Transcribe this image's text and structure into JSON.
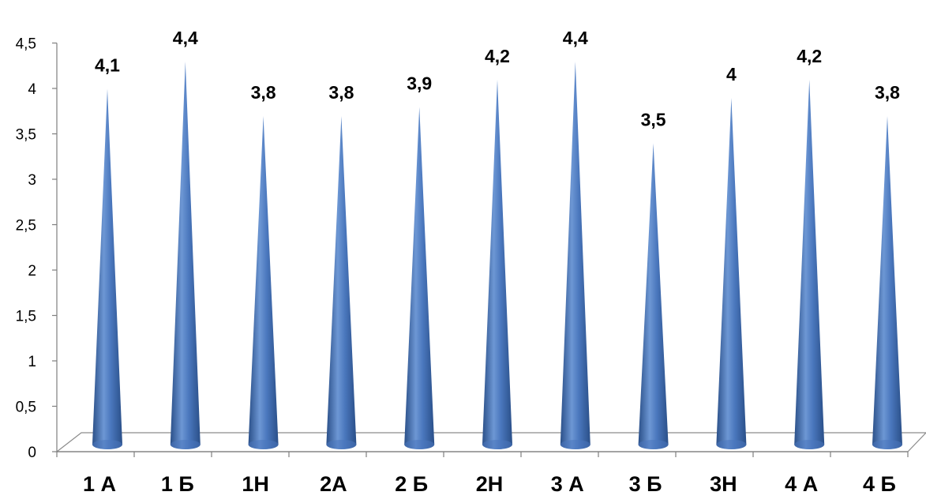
{
  "chart_data": {
    "type": "bar",
    "bar_shape": "cone",
    "categories": [
      "1 А",
      "1 Б",
      "1Н",
      "2А",
      "2 Б",
      "2Н",
      "3 А",
      "3 Б",
      "3Н",
      "4 А",
      "4 Б"
    ],
    "values": [
      4.1,
      4.4,
      3.8,
      3.8,
      3.9,
      4.2,
      4.4,
      3.5,
      4,
      4.2,
      3.8
    ],
    "value_labels": [
      "4,1",
      "4,4",
      "3,8",
      "3,8",
      "3,9",
      "4,2",
      "4,4",
      "3,5",
      "4",
      "4,2",
      "3,8"
    ],
    "y_ticks": [
      "0",
      "0,5",
      "1",
      "1,5",
      "2",
      "2,5",
      "3",
      "3,5",
      "4",
      "4,5"
    ],
    "ylim": [
      0,
      4.5
    ],
    "title": "",
    "xlabel": "",
    "ylabel": "",
    "grid": false,
    "legend": "none",
    "colors": {
      "bar_light": "#6d97d4",
      "bar_mid": "#4a77bd",
      "bar_dark": "#2a4f88",
      "axis": "#7f7f7f"
    }
  }
}
